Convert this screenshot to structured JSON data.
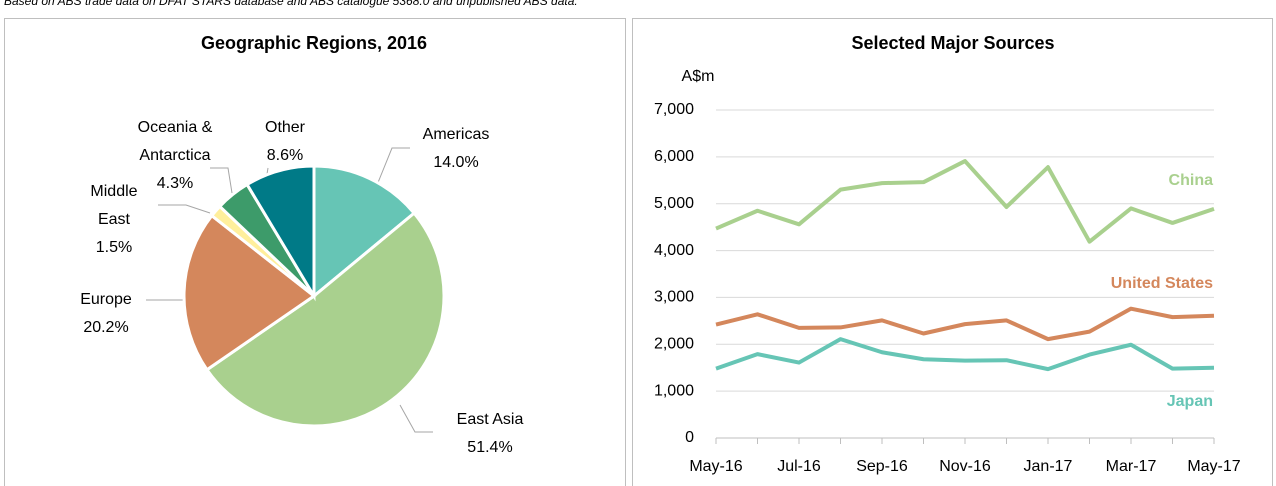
{
  "note": "Based on ABS trade data on DFAT STARS database and ABS catalogue 5368.0 and unpublished ABS data.",
  "chart_data": [
    {
      "type": "pie",
      "title": "Geographic Regions, 2016",
      "categories": [
        "Americas",
        "East Asia",
        "Europe",
        "Middle East",
        "Oceania & Antarctica",
        "Other"
      ],
      "values": [
        14.0,
        51.4,
        20.2,
        1.5,
        4.3,
        8.6
      ],
      "value_labels": [
        "14.0%",
        "51.4%",
        "20.2%",
        "1.5%",
        "4.3%",
        "8.6%"
      ],
      "colors": [
        "#66c5b5",
        "#a9d08e",
        "#d4875c",
        "#ffef9c",
        "#3d9b6a",
        "#007a87"
      ]
    },
    {
      "type": "line",
      "title": "Selected Major Sources",
      "y_label": "A$m",
      "categories": [
        "May-16",
        null,
        "Jul-16",
        null,
        "Sep-16",
        null,
        "Nov-16",
        null,
        "Jan-17",
        null,
        "Mar-17",
        null,
        "May-17"
      ],
      "ylim": [
        0,
        7000
      ],
      "yticks": [
        0,
        {
          "value": 1000,
          "label": "1,000"
        },
        {
          "value": 2000,
          "label": "2,000"
        },
        {
          "value": 3000,
          "label": "3,000"
        },
        {
          "value": 4000,
          "label": "4,000"
        },
        {
          "value": 5000,
          "label": "5,000"
        },
        {
          "value": 6000,
          "label": "6,000"
        },
        {
          "value": 7000,
          "label": "7,000"
        }
      ],
      "grid": true,
      "series": [
        {
          "name": "China",
          "color": "#a9d08e",
          "values": [
            4470,
            4850,
            4560,
            5300,
            5440,
            5460,
            5910,
            4930,
            5780,
            4190,
            4900,
            4590,
            4890
          ]
        },
        {
          "name": "United States",
          "color": "#d4875c",
          "values": [
            2420,
            2640,
            2350,
            2360,
            2510,
            2230,
            2430,
            2510,
            2110,
            2270,
            2760,
            2580,
            2610
          ]
        },
        {
          "name": "Japan",
          "color": "#66c5b5",
          "values": [
            1480,
            1790,
            1610,
            2110,
            1830,
            1680,
            1650,
            1660,
            1470,
            1780,
            1990,
            1480,
            1500
          ]
        }
      ]
    }
  ]
}
